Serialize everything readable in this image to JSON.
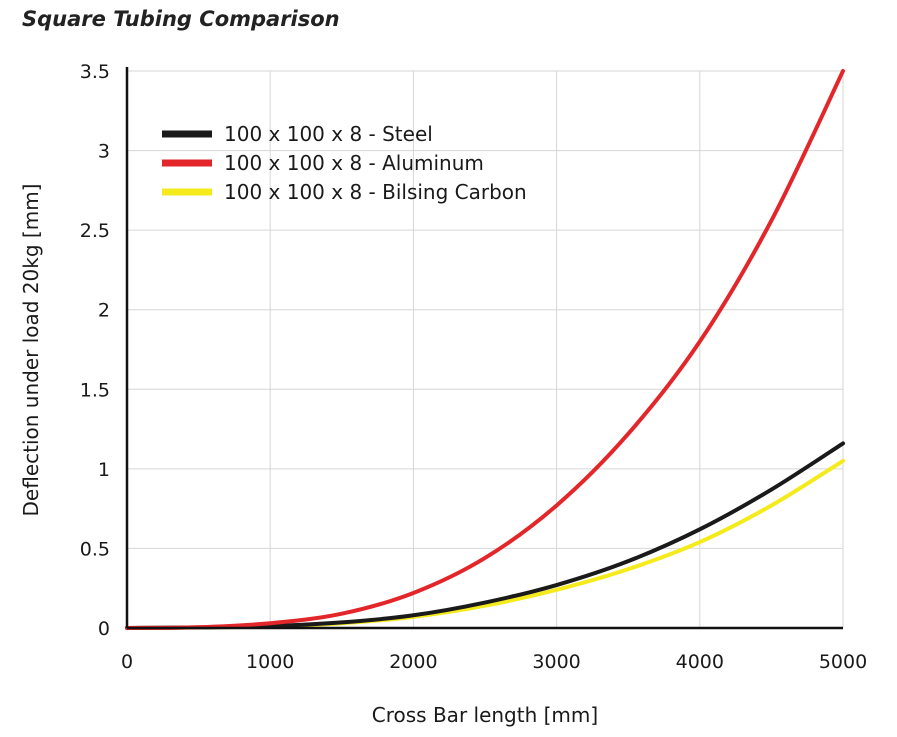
{
  "chart_data": {
    "type": "line",
    "title": "Square Tubing Comparison",
    "xlabel": "Cross Bar length [mm]",
    "ylabel": "Deflection under load 20kg [mm]",
    "xlim": [
      0,
      5000
    ],
    "ylim": [
      0,
      3.5
    ],
    "x_ticks": [
      "0",
      "1000",
      "2000",
      "3000",
      "4000",
      "5000"
    ],
    "y_ticks": [
      "0",
      "0.5",
      "1",
      "1.5",
      "2",
      "2.5",
      "3",
      "3.5"
    ],
    "grid": true,
    "legend_position": "top-left",
    "x": [
      0,
      500,
      1000,
      1500,
      2000,
      2500,
      3000,
      3500,
      4000,
      4500,
      5000
    ],
    "series": [
      {
        "name": "100 x 100 x 8 - Steel",
        "color": "#1a1a1a",
        "values": [
          0,
          0.004,
          0.012,
          0.035,
          0.08,
          0.16,
          0.27,
          0.42,
          0.62,
          0.87,
          1.16
        ]
      },
      {
        "name": "100 x 100 x 8 - Aluminum",
        "color": "#e3262a",
        "values": [
          0,
          0.005,
          0.03,
          0.09,
          0.22,
          0.44,
          0.77,
          1.22,
          1.8,
          2.56,
          3.5
        ]
      },
      {
        "name": "100 x 100 x 8 - Bilsing Carbon",
        "color": "#f5ea1c",
        "values": [
          0,
          0.003,
          0.01,
          0.03,
          0.07,
          0.14,
          0.24,
          0.37,
          0.54,
          0.77,
          1.05
        ]
      }
    ]
  }
}
